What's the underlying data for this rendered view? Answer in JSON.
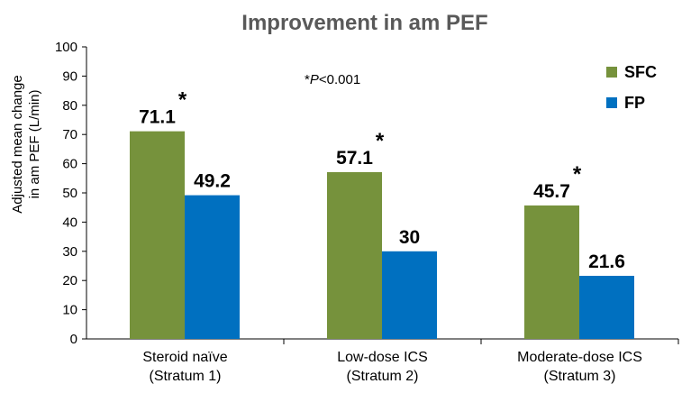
{
  "chart_data": {
    "type": "bar",
    "title": "Improvement in am PEF",
    "xlabel": "",
    "ylabel": [
      "Adjusted mean change",
      "in am PEF (L/min)"
    ],
    "ylim": [
      0,
      100
    ],
    "yticks": [
      "0",
      "10",
      "20",
      "30",
      "40",
      "50",
      "60",
      "70",
      "80",
      "90",
      "100"
    ],
    "categories": [
      [
        "Steroid naïve",
        "(Stratum 1)"
      ],
      [
        "Low-dose ICS",
        "(Stratum 2)"
      ],
      [
        "Moderate-dose ICS",
        "(Stratum 3)"
      ]
    ],
    "series": [
      {
        "name": "SFC",
        "color": "#76923c",
        "values": [
          71.1,
          57.1,
          45.7
        ],
        "labels": [
          "71.1",
          "57.1",
          "45.7"
        ],
        "significant": [
          true,
          true,
          true
        ]
      },
      {
        "name": "FP",
        "color": "#0070c0",
        "values": [
          49.2,
          30,
          21.6
        ],
        "labels": [
          "49.2",
          "30",
          "21.6"
        ],
        "significant": [
          false,
          false,
          false
        ]
      }
    ],
    "significance_marker": "*",
    "annotation": {
      "prefix": "*",
      "italic": "P",
      "suffix": "<0.001"
    },
    "grid": false,
    "legend": "top-right"
  }
}
